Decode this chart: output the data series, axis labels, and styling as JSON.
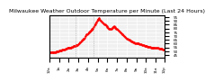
{
  "title": "Milwaukee Weather Outdoor Temperature per Minute (Last 24 Hours)",
  "line_color": "#ff0000",
  "line_style": "--",
  "line_width": 0.8,
  "marker": ".",
  "marker_size": 1.5,
  "bg_color": "#ffffff",
  "plot_bg_color": "#f0f0f0",
  "grid_color": "#ffffff",
  "vline_positions": [
    32,
    55
  ],
  "vline_color": "#aaaaaa",
  "vline_style": ":",
  "ytick_labels": [
    "95",
    "90",
    "85",
    "80",
    "75",
    "70",
    "65",
    "60",
    "55",
    "50",
    "45"
  ],
  "ylim": [
    42,
    98
  ],
  "xlim": [
    0,
    143
  ],
  "title_fontsize": 4.5,
  "tick_fontsize": 3.0,
  "y_values": [
    48,
    48,
    48,
    48,
    49,
    49,
    49,
    49,
    49,
    50,
    50,
    50,
    51,
    51,
    51,
    51,
    52,
    52,
    52,
    52,
    53,
    53,
    54,
    54,
    55,
    55,
    55,
    55,
    56,
    56,
    57,
    57,
    57,
    58,
    58,
    58,
    59,
    60,
    62,
    63,
    64,
    65,
    66,
    67,
    68,
    70,
    72,
    73,
    74,
    75,
    76,
    77,
    78,
    79,
    80,
    82,
    84,
    86,
    88,
    90,
    92,
    93,
    94,
    92,
    90,
    89,
    88,
    87,
    86,
    85,
    84,
    83,
    82,
    81,
    80,
    79,
    79,
    80,
    81,
    82,
    83,
    82,
    81,
    80,
    79,
    78,
    77,
    76,
    75,
    74,
    73,
    72,
    71,
    70,
    69,
    68,
    67,
    66,
    65,
    65,
    64,
    64,
    63,
    63,
    62,
    62,
    61,
    61,
    61,
    60,
    60,
    60,
    59,
    59,
    59,
    58,
    58,
    58,
    57,
    57,
    57,
    57,
    56,
    56,
    56,
    56,
    55,
    55,
    55,
    55,
    55,
    54,
    54,
    54,
    54,
    54,
    53,
    53,
    53,
    53,
    53,
    52,
    52,
    52
  ],
  "xtick_positions": [
    0,
    12,
    24,
    36,
    48,
    60,
    72,
    84,
    96,
    108,
    120,
    132,
    143
  ],
  "xtick_labels": [
    "12a",
    "1a",
    "2a",
    "3a",
    "4a",
    "5a",
    "6a",
    "7a",
    "8a",
    "9a",
    "10a",
    "11a",
    "12p"
  ]
}
